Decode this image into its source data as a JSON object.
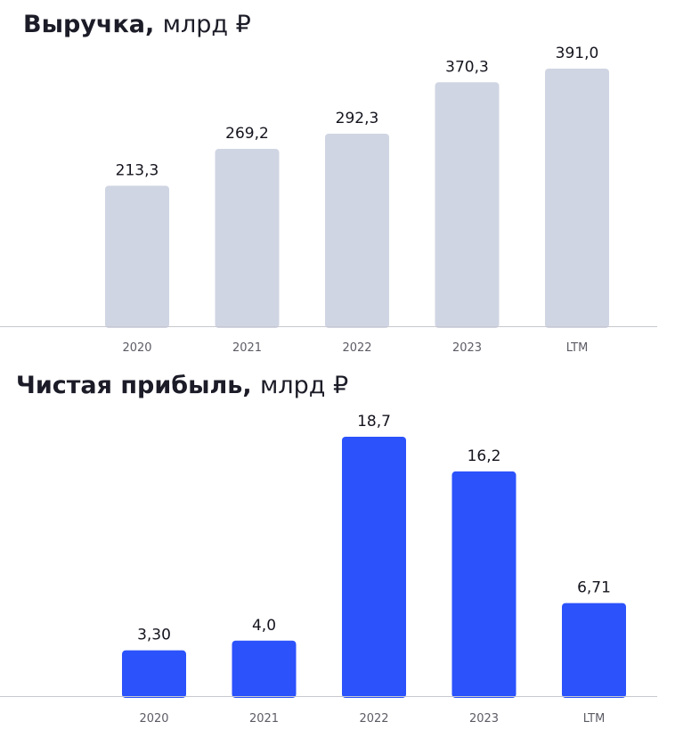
{
  "charts": [
    {
      "title": "Выручка,",
      "unit": "млрд ₽",
      "color": "#d0d5e3",
      "chart_data": {
        "type": "bar",
        "categories": [
          "2020",
          "2021",
          "2022",
          "2023",
          "LTM"
        ],
        "values": [
          213.3,
          269.2,
          292.3,
          370.3,
          391.0
        ],
        "labels": [
          "213,3",
          "269,2",
          "292,3",
          "370,3",
          "391,0"
        ],
        "title": "Выручка, млрд ₽",
        "xlabel": "",
        "ylabel": "",
        "grid": false
      }
    },
    {
      "title": "Чистая прибыль,",
      "unit": "млрд ₽",
      "color": "#2b52fb",
      "chart_data": {
        "type": "bar",
        "categories": [
          "2020",
          "2021",
          "2022",
          "2023",
          "LTM"
        ],
        "values": [
          3.3,
          4.0,
          18.7,
          16.2,
          6.71
        ],
        "labels": [
          "3,30",
          "4,0",
          "18,7",
          "16,2",
          "6,71"
        ],
        "title": "Чистая прибыль, млрд ₽",
        "xlabel": "",
        "ylabel": "",
        "grid": false
      }
    }
  ]
}
